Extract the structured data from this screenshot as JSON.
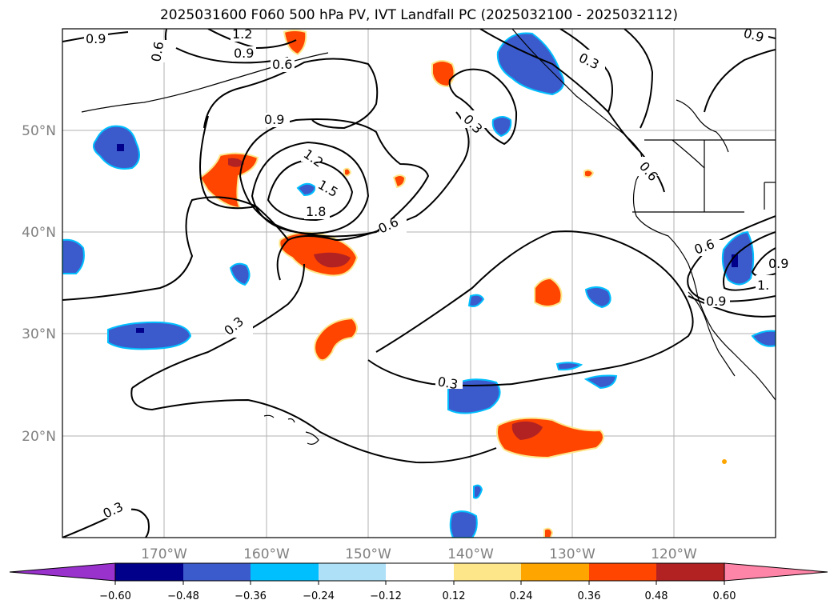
{
  "title": "2025031600 F060 500 hPa PV, IVT Landfall PC (2025032100 - 2025032112)",
  "map": {
    "lat_labels": [
      "50°N",
      "40°N",
      "30°N",
      "20°N"
    ],
    "lon_labels": [
      "170°W",
      "160°W",
      "150°W",
      "140°W",
      "130°W",
      "120°W"
    ],
    "contour_labels": [
      "0.9",
      "1.2",
      "0.9",
      "0.6",
      "0.6",
      "0.9",
      "1.2",
      "1.5",
      "1.8",
      "0.6",
      "0.3",
      "0.3",
      "0.6",
      "0.3",
      "0.3",
      "0.3",
      "0.9",
      "0.6",
      "0.9",
      "1.",
      "0.9"
    ]
  },
  "colorbar": {
    "tick_labels": [
      "−0.60",
      "−0.48",
      "−0.36",
      "−0.24",
      "−0.12",
      "0.12",
      "0.24",
      "0.36",
      "0.48",
      "0.60"
    ],
    "colors": [
      "#9932cc",
      "#00008b",
      "#3b5bcc",
      "#00bfff",
      "#aee0f8",
      "#ffffff",
      "#fde68a",
      "#ffa500",
      "#ff4500",
      "#b22222",
      "#ff85a8"
    ]
  }
}
